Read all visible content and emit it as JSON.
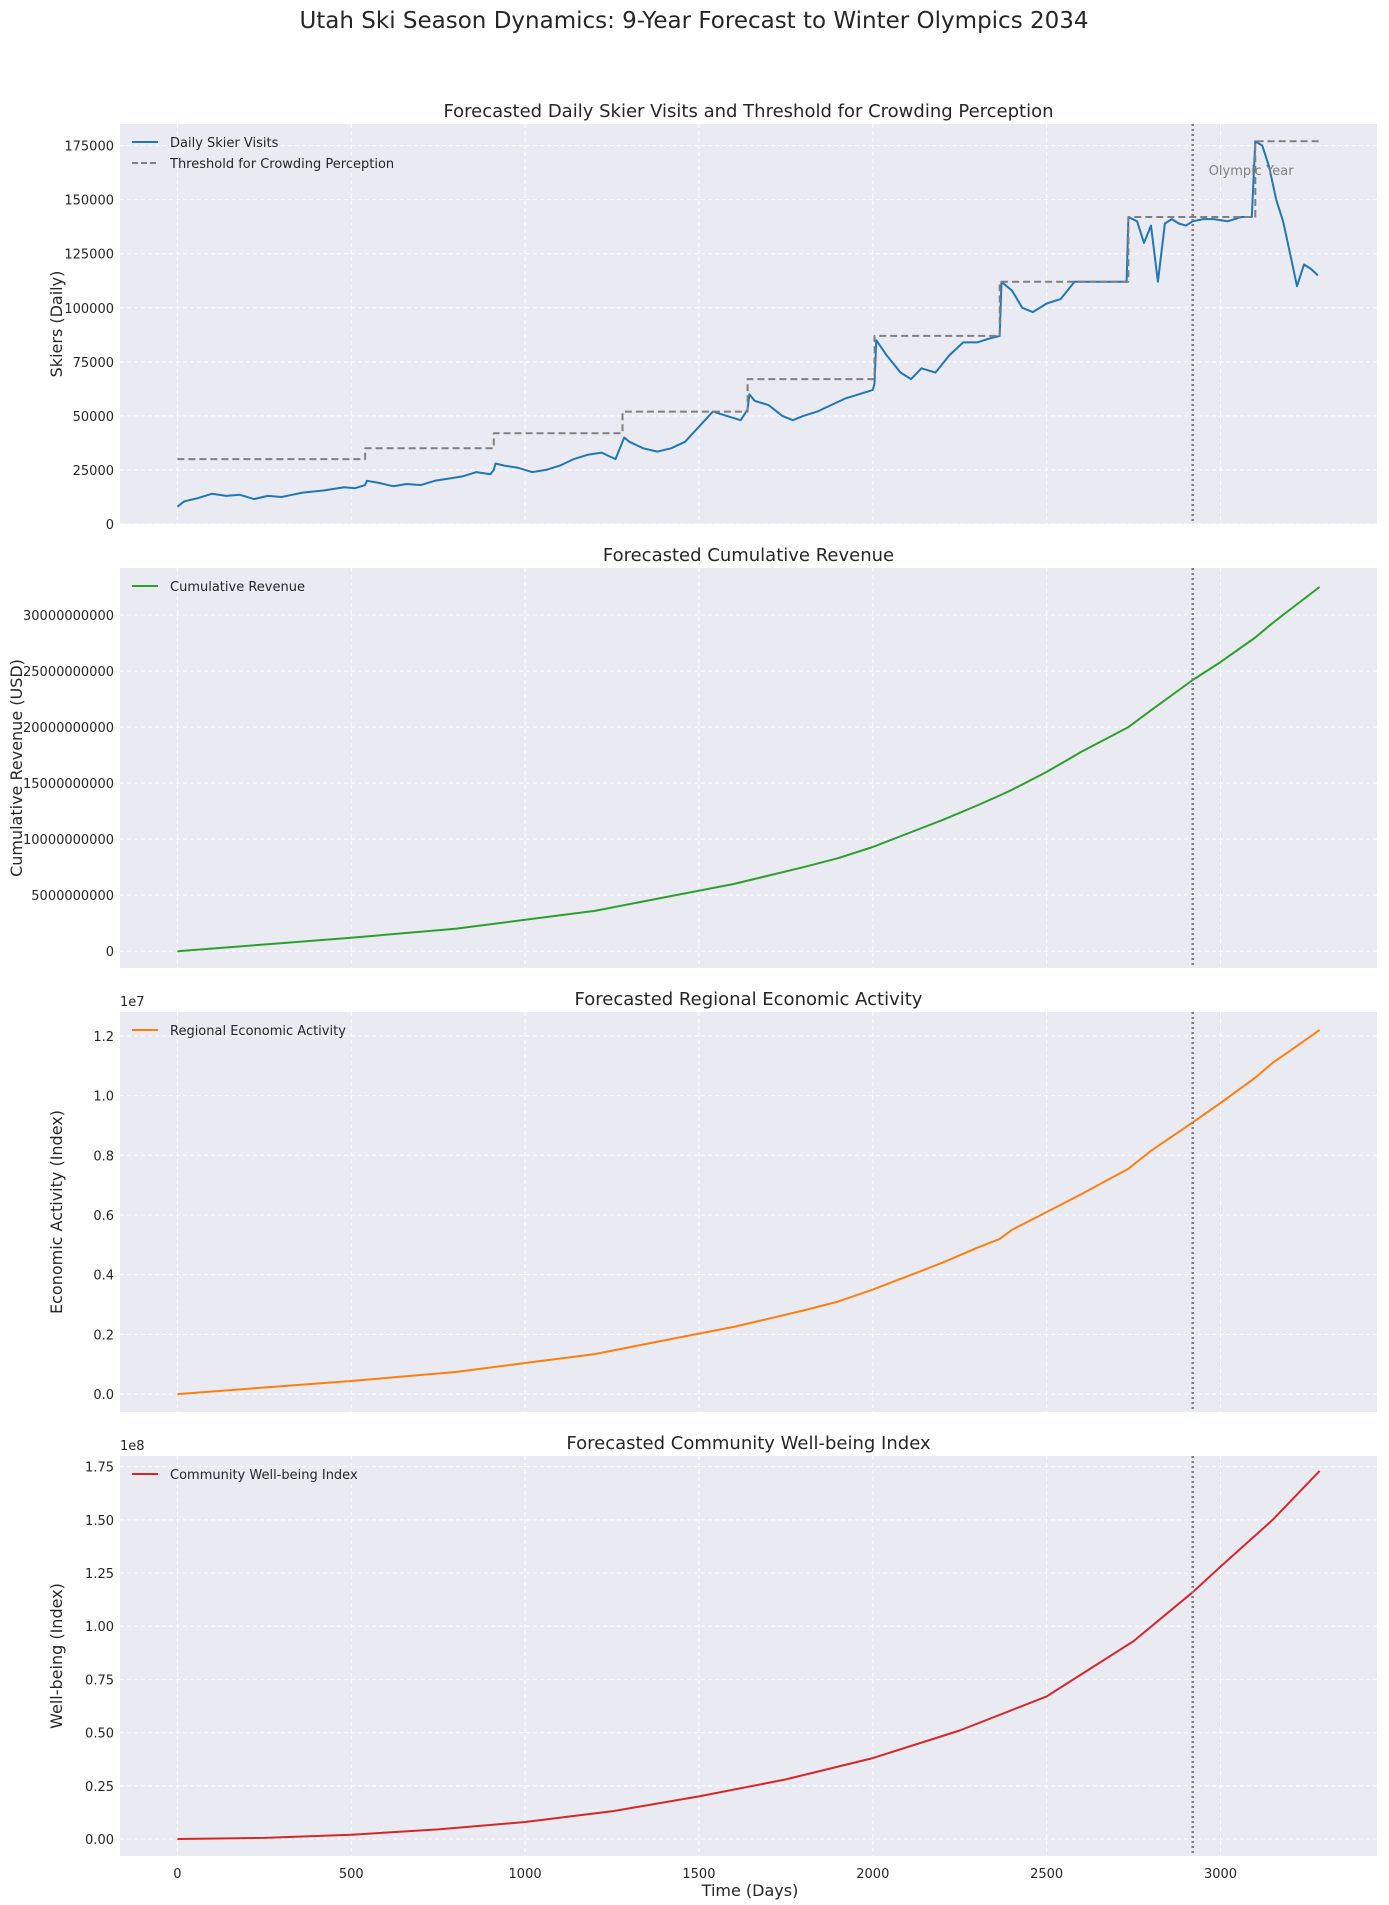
{
  "figure": {
    "suptitle": "Utah Ski Season Dynamics: 9-Year Forecast to Winter Olympics 2034",
    "xlabel": "Time (Days)",
    "x_ticks": [
      0,
      500,
      1000,
      1500,
      2000,
      2500,
      3000
    ],
    "vline_x": 2920,
    "vline_label": "Olympic Year",
    "colors": {
      "background": "#eaeaf2",
      "grid": "#ffffff",
      "vline": "#808080",
      "skiers": "#1f77b4",
      "threshold": "#808080",
      "revenue": "#2ca02c",
      "economic": "#ff7f0e",
      "wellbeing": "#d62728"
    }
  },
  "chart_data": [
    {
      "type": "line",
      "title": "Forecasted Daily Skier Visits and Threshold for Crowding Perception",
      "xlabel": "",
      "ylabel": "Skiers (Daily)",
      "xlim": [
        -165,
        3450
      ],
      "ylim": [
        0,
        185000
      ],
      "y_ticks": [
        0,
        25000,
        50000,
        75000,
        100000,
        125000,
        150000,
        175000
      ],
      "y_tick_labels": [
        "0",
        "25000",
        "50000",
        "75000",
        "100000",
        "125000",
        "150000",
        "175000"
      ],
      "grid": true,
      "legend_position": "top-left",
      "series": [
        {
          "name": "Daily Skier Visits",
          "style": "solid",
          "color": "#1f77b4",
          "x": [
            0,
            20,
            60,
            100,
            140,
            180,
            220,
            260,
            300,
            330,
            360,
            420,
            480,
            510,
            540,
            545,
            580,
            620,
            660,
            700,
            740,
            780,
            820,
            860,
            900,
            910,
            915,
            940,
            980,
            1020,
            1060,
            1100,
            1140,
            1180,
            1220,
            1260,
            1280,
            1285,
            1300,
            1340,
            1380,
            1420,
            1460,
            1500,
            1540,
            1580,
            1620,
            1640,
            1645,
            1660,
            1700,
            1740,
            1770,
            1800,
            1840,
            1880,
            1920,
            1960,
            2000,
            2005,
            2010,
            2040,
            2080,
            2110,
            2140,
            2180,
            2220,
            2260,
            2300,
            2340,
            2365,
            2370,
            2400,
            2430,
            2460,
            2500,
            2540,
            2580,
            2620,
            2660,
            2700,
            2730,
            2735,
            2760,
            2780,
            2800,
            2820,
            2840,
            2860,
            2880,
            2900,
            2920,
            2950,
            2980,
            3020,
            3060,
            3090,
            3100,
            3120,
            3140,
            3160,
            3180,
            3200,
            3220,
            3240,
            3260,
            3280
          ],
          "y": [
            8000,
            10500,
            12000,
            14000,
            13000,
            13500,
            11500,
            13000,
            12500,
            13500,
            14500,
            15500,
            17000,
            16500,
            18000,
            20000,
            19000,
            17500,
            18500,
            18000,
            20000,
            21000,
            22000,
            24000,
            23000,
            25000,
            28000,
            27000,
            26000,
            24000,
            25000,
            27000,
            30000,
            32000,
            33000,
            30000,
            38000,
            40000,
            38000,
            35000,
            33500,
            35000,
            38000,
            45000,
            52000,
            50000,
            48000,
            53000,
            60000,
            57000,
            55000,
            50000,
            48000,
            50000,
            52000,
            55000,
            58000,
            60000,
            62000,
            65000,
            85000,
            78000,
            70000,
            67000,
            72000,
            70000,
            78000,
            84000,
            84000,
            86000,
            87000,
            112000,
            108000,
            100000,
            98000,
            102000,
            104000,
            112000,
            112000,
            112000,
            112000,
            112000,
            142000,
            140000,
            130000,
            138000,
            112000,
            139000,
            141000,
            139000,
            138000,
            140000,
            141000,
            141000,
            140000,
            142000,
            142000,
            177000,
            175000,
            165000,
            150000,
            140000,
            125000,
            110000,
            120000,
            118000,
            115000
          ]
        },
        {
          "name": "Threshold for Crowding Perception",
          "style": "dashed",
          "color": "#808080",
          "x": [
            0,
            540,
            540,
            910,
            910,
            1280,
            1280,
            1640,
            1640,
            2005,
            2005,
            2365,
            2365,
            2735,
            2735,
            3100,
            3100,
            3285
          ],
          "y": [
            30000,
            30000,
            35000,
            35000,
            42000,
            42000,
            52000,
            52000,
            67000,
            67000,
            87000,
            87000,
            112000,
            112000,
            142000,
            142000,
            177000,
            177000
          ]
        }
      ],
      "annotations": [
        "Olympic Year"
      ]
    },
    {
      "type": "line",
      "title": "Forecasted Cumulative Revenue",
      "xlabel": "",
      "ylabel": "Cumulative Revenue (USD)",
      "xlim": [
        -165,
        3450
      ],
      "ylim": [
        -1500000000,
        34200000000
      ],
      "y_ticks": [
        0,
        5000000000,
        10000000000,
        15000000000,
        20000000000,
        25000000000,
        30000000000
      ],
      "y_tick_labels": [
        "0",
        "5000000000",
        "10000000000",
        "15000000000",
        "20000000000",
        "25000000000",
        "30000000000"
      ],
      "grid": true,
      "legend_position": "top-left",
      "series": [
        {
          "name": "Cumulative Revenue",
          "color": "#2ca02c",
          "x": [
            0,
            250,
            500,
            800,
            1000,
            1200,
            1400,
            1600,
            1800,
            1900,
            2000,
            2100,
            2200,
            2300,
            2365,
            2400,
            2500,
            2600,
            2735,
            2800,
            2920,
            3000,
            3100,
            3150,
            3200,
            3285
          ],
          "y": [
            0,
            600000000,
            1200000000,
            2000000000,
            2800000000,
            3600000000,
            4800000000,
            6000000000,
            7500000000,
            8300000000,
            9300000000,
            10500000000,
            11700000000,
            13000000000,
            13900000000,
            14400000000,
            16000000000,
            17800000000,
            20000000000,
            21500000000,
            24200000000,
            25800000000,
            28000000000,
            29300000000,
            30500000000,
            32500000000
          ]
        }
      ]
    },
    {
      "type": "line",
      "title": "Forecasted Regional Economic Activity",
      "xlabel": "",
      "ylabel": "Economic Activity (Index)",
      "offset_label": "1e7",
      "xlim": [
        -165,
        3450
      ],
      "ylim": [
        -600000,
        12800000
      ],
      "y_ticks": [
        0,
        2000000,
        4000000,
        6000000,
        8000000,
        10000000,
        12000000
      ],
      "y_tick_labels": [
        "0.0",
        "0.2",
        "0.4",
        "0.6",
        "0.8",
        "1.0",
        "1.2"
      ],
      "grid": true,
      "legend_position": "top-left",
      "series": [
        {
          "name": "Regional Economic Activity",
          "color": "#ff7f0e",
          "x": [
            0,
            250,
            500,
            800,
            1000,
            1200,
            1400,
            1600,
            1800,
            1900,
            2000,
            2100,
            2200,
            2300,
            2365,
            2400,
            2500,
            2600,
            2735,
            2800,
            2920,
            3000,
            3100,
            3150,
            3200,
            3285
          ],
          "y": [
            0,
            220000,
            440000,
            740000,
            1040000,
            1340000,
            1800000,
            2250000,
            2800000,
            3100000,
            3500000,
            3950000,
            4400000,
            4900000,
            5200000,
            5500000,
            6100000,
            6700000,
            7550000,
            8150000,
            9100000,
            9750000,
            10600000,
            11100000,
            11500000,
            12200000
          ]
        }
      ]
    },
    {
      "type": "line",
      "title": "Forecasted Community Well-being Index",
      "xlabel": "Time (Days)",
      "ylabel": "Well-being (Index)",
      "offset_label": "1e8",
      "xlim": [
        -165,
        3450
      ],
      "ylim": [
        -8000000,
        180000000
      ],
      "y_ticks": [
        0,
        25000000,
        50000000,
        75000000,
        100000000,
        125000000,
        150000000,
        175000000
      ],
      "y_tick_labels": [
        "0.00",
        "0.25",
        "0.50",
        "0.75",
        "1.00",
        "1.25",
        "1.50",
        "1.75"
      ],
      "grid": true,
      "legend_position": "top-left",
      "series": [
        {
          "name": "Community Well-being Index",
          "color": "#d62728",
          "x": [
            0,
            250,
            500,
            750,
            1000,
            1250,
            1500,
            1750,
            2000,
            2250,
            2500,
            2750,
            2920,
            3000,
            3150,
            3285
          ],
          "y": [
            0,
            500000,
            2000000,
            4500000,
            8000000,
            13000000,
            20000000,
            28000000,
            38000000,
            51000000,
            67000000,
            93000000,
            116000000,
            128000000,
            150000000,
            173000000
          ]
        }
      ]
    }
  ]
}
